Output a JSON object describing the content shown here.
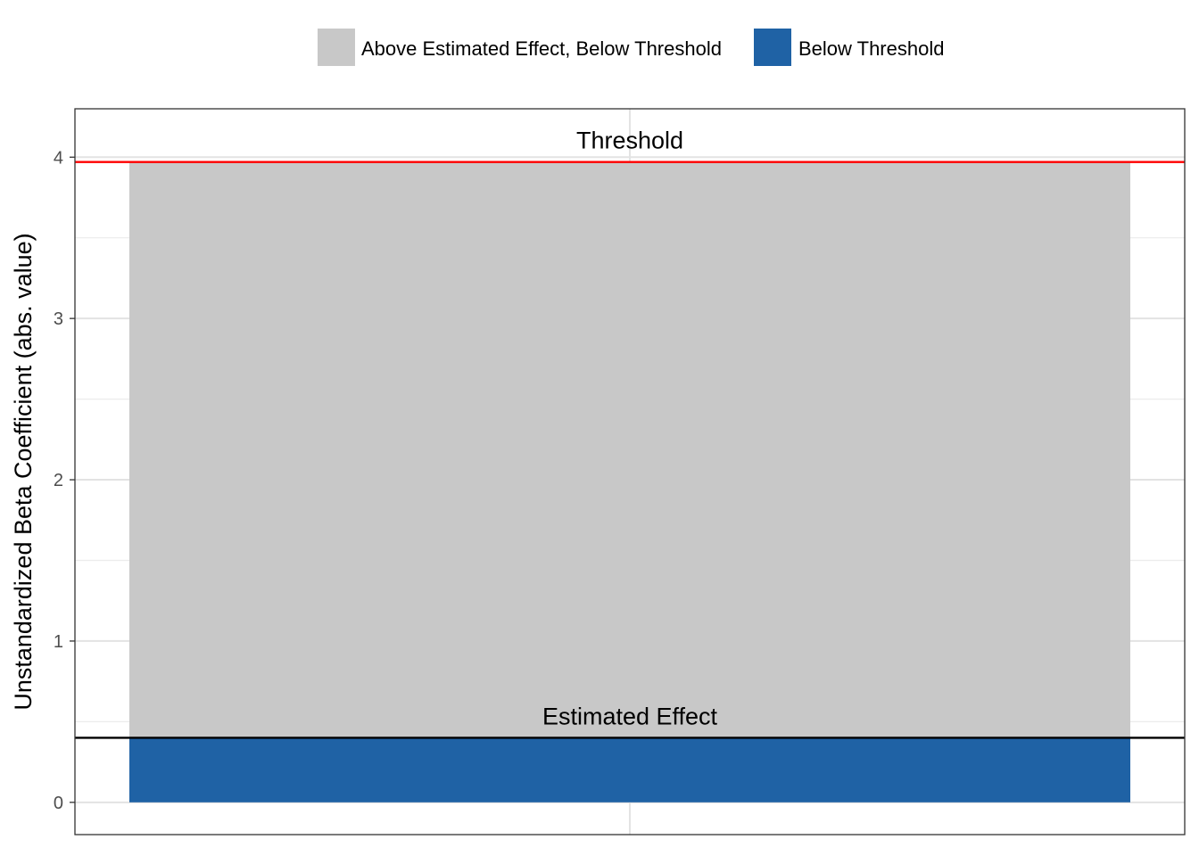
{
  "chart_data": {
    "type": "bar",
    "stacked": true,
    "categories": [
      ""
    ],
    "series": [
      {
        "name": "Above Estimated Effect, Below Threshold",
        "values": [
          3.57
        ],
        "color": "#c8c8c8"
      },
      {
        "name": "Below Threshold",
        "values": [
          0.4
        ],
        "color": "#1f62a5"
      }
    ],
    "reference_lines": [
      {
        "label": "Threshold",
        "value": 3.97,
        "color": "#ff0000"
      },
      {
        "label": "Estimated Effect",
        "value": 0.4,
        "color": "#000000"
      }
    ],
    "title": "",
    "xlabel": "",
    "ylabel": "Unstandardized Beta Coefficient (abs. value)",
    "ylim": [
      -0.2,
      4.3
    ],
    "yticks": [
      0,
      1,
      2,
      3,
      4
    ],
    "grid": true,
    "legend_position": "top"
  }
}
